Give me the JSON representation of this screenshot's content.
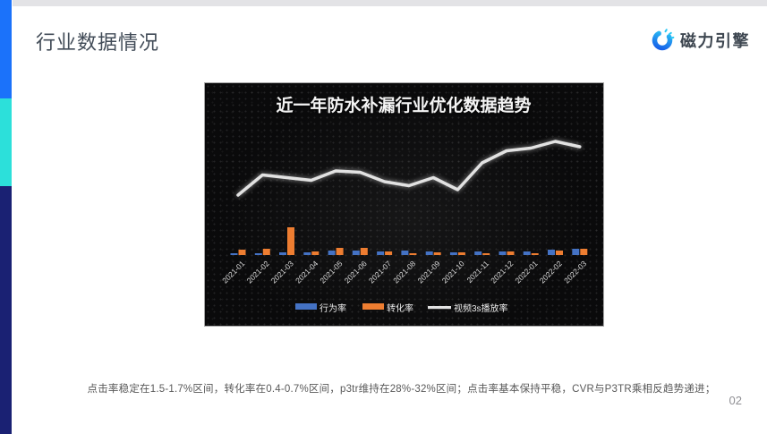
{
  "slide": {
    "title": "行业数据情况",
    "caption": "点击率稳定在1.5-1.7%区间，转化率在0.4-0.7%区间，p3tr维持在28%-32%区间；点击率基本保持平稳，CVR与P3TR乘相反趋势递进；",
    "page_number": "02"
  },
  "brand": {
    "logo_text": "磁力引擎",
    "logo_icon": "magnetic-c-icon",
    "gradient_start": "#1557e8",
    "gradient_end": "#2ec9f5"
  },
  "accent_bar": {
    "colors": [
      "#1b72fa",
      "#2ce0da",
      "#1a2173"
    ]
  },
  "chart_data": {
    "type": "combo-bar-line",
    "title": "近一年防水补漏行业优化数据趋势",
    "categories": [
      "2021-01",
      "2021-02",
      "2021-03",
      "2021-04",
      "2021-05",
      "2021-06",
      "2021-07",
      "2021-08",
      "2021-09",
      "2021-10",
      "2021-11",
      "2021-12",
      "2022-01",
      "2022-02",
      "2022-03"
    ],
    "series": [
      {
        "name": "行为率",
        "type": "bar",
        "color": "#4472c4",
        "unit": "relative",
        "values": [
          2,
          2,
          3,
          3,
          5,
          5,
          4,
          5,
          4,
          3,
          4,
          4,
          4,
          6,
          7
        ]
      },
      {
        "name": "转化率",
        "type": "bar",
        "color": "#ed7d31",
        "unit": "relative",
        "values": [
          6,
          7,
          31,
          4,
          8,
          8,
          4,
          2,
          3,
          3,
          2,
          4,
          2,
          5,
          7
        ]
      },
      {
        "name": "视频3s播放率",
        "type": "line",
        "color": "#e2e2e2",
        "unit": "%",
        "values": [
          28.0,
          29.5,
          29.3,
          29.1,
          29.8,
          29.7,
          29.0,
          28.7,
          29.3,
          28.4,
          30.4,
          31.3,
          31.5,
          32.0,
          31.6
        ]
      }
    ],
    "line_range": [
      28,
      32
    ],
    "axes_visible": false,
    "legend_position": "bottom",
    "background": "#0a0a0b"
  }
}
